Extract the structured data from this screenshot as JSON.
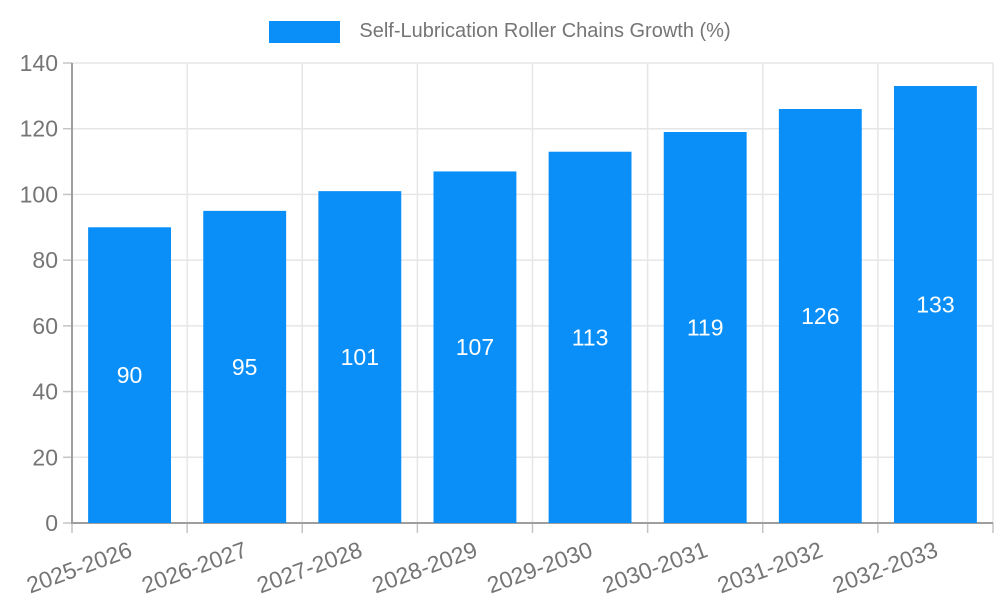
{
  "legend": {
    "items": [
      {
        "label": "Self-Lubrication Roller Chains Growth (%)",
        "color": "#0a8ff8"
      }
    ]
  },
  "chart_data": {
    "type": "bar",
    "title": "",
    "categories": [
      "2025-2026",
      "2026-2027",
      "2027-2028",
      "2028-2029",
      "2029-2030",
      "2030-2031",
      "2031-2032",
      "2032-2033"
    ],
    "series": [
      {
        "name": "Self-Lubrication Roller Chains Growth (%)",
        "values": [
          90,
          95,
          101,
          107,
          113,
          119,
          126,
          133
        ],
        "color": "#0a8ff8"
      }
    ],
    "xlabel": "",
    "ylabel": "",
    "ylim": [
      0,
      140
    ],
    "yticks": [
      0,
      20,
      40,
      60,
      80,
      100,
      120,
      140
    ],
    "grid": true,
    "legend_position": "top-center",
    "value_labels": "inside-center",
    "value_label_color": "#ffffff",
    "x_label_rotation_deg": -20,
    "colors": {
      "bar": "#0a8ff8",
      "grid": "#e6e6e6",
      "axis": "#9e9e9e",
      "tick": "#c4c4c4",
      "tick_label": "#757575",
      "legend_text": "#757575",
      "background": "#ffffff"
    }
  }
}
